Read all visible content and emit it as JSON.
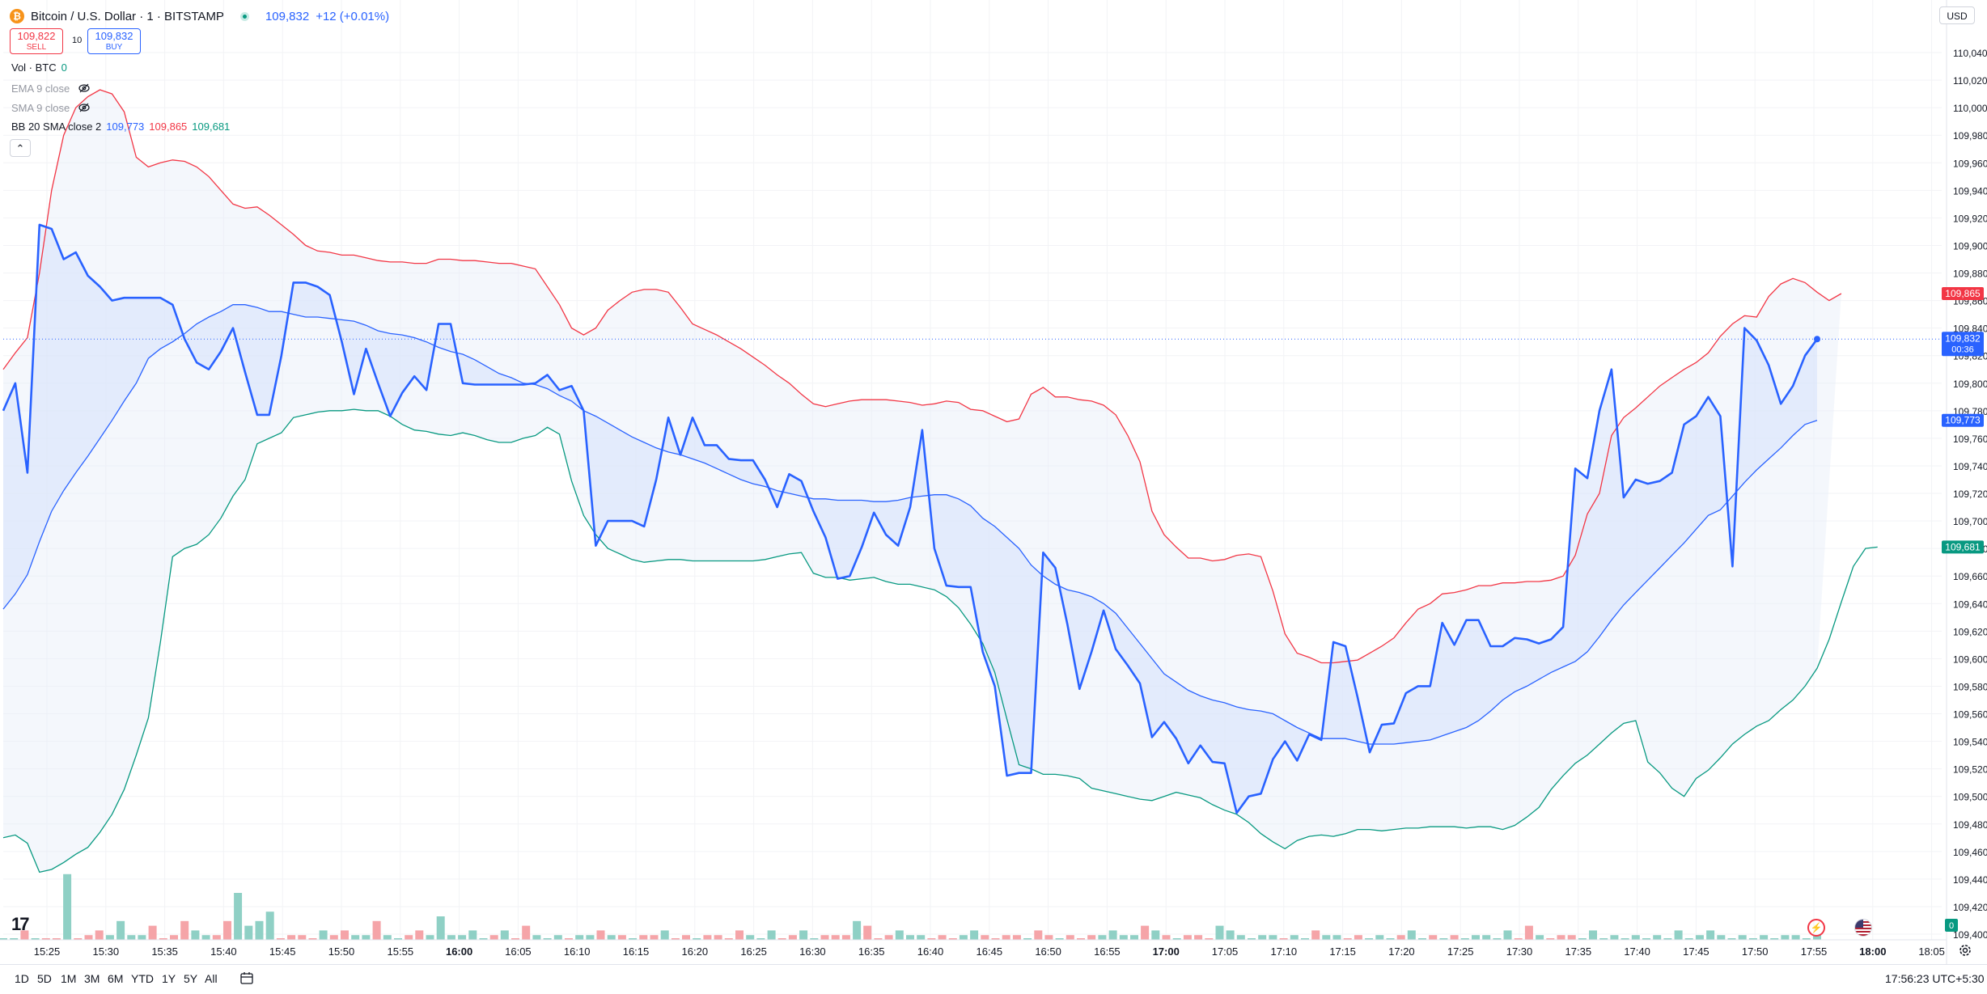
{
  "header": {
    "symbol_title": "Bitcoin / U.S. Dollar · 1 · BITSTAMP",
    "last_price": "109,832",
    "change": "+12 (+0.01%)",
    "logo_glyph": "₿"
  },
  "trade": {
    "sell_price": "109,822",
    "sell_label": "SELL",
    "spread": "10",
    "buy_price": "109,832",
    "buy_label": "BUY"
  },
  "indicators": {
    "vol_label": "Vol · BTC",
    "vol_value": "0",
    "ema_label": "EMA 9 close",
    "sma_label": "SMA 9 close",
    "bb_label": "BB 20 SMA close 2",
    "bb_basis": "109,773",
    "bb_upper": "109,865",
    "bb_lower": "109,681"
  },
  "currency": "USD",
  "price_axis": {
    "labels": [
      "110,040",
      "110,020",
      "110,000",
      "109,980",
      "109,960",
      "109,940",
      "109,920",
      "109,900",
      "109,880",
      "109,860",
      "109,840",
      "109,820",
      "109,800",
      "109,780",
      "109,760",
      "109,740",
      "109,720",
      "109,700",
      "109,680",
      "109,660",
      "109,640",
      "109,620",
      "109,600",
      "109,580",
      "109,560",
      "109,540",
      "109,520",
      "109,500",
      "109,480",
      "109,460",
      "109,440",
      "109,420",
      "109,400"
    ],
    "tags": [
      {
        "value": 109865,
        "text": "109,865",
        "color": "#f23645"
      },
      {
        "value": 109832,
        "text": "109,832",
        "sub": "00:36",
        "color": "#2962ff"
      },
      {
        "value": 109773,
        "text": "109,773",
        "color": "#2962ff"
      },
      {
        "value": 109681,
        "text": "109,681",
        "color": "#089981"
      }
    ],
    "volume_tag": "0"
  },
  "time_axis": {
    "labels": [
      "15:25",
      "15:30",
      "15:35",
      "15:40",
      "15:45",
      "15:50",
      "15:55",
      "16:00",
      "16:05",
      "16:10",
      "16:15",
      "16:20",
      "16:25",
      "16:30",
      "16:35",
      "16:40",
      "16:45",
      "16:50",
      "16:55",
      "17:00",
      "17:05",
      "17:10",
      "17:15",
      "17:20",
      "17:25",
      "17:30",
      "17:35",
      "17:40",
      "17:45",
      "17:50",
      "17:55",
      "18:00",
      "18:05"
    ],
    "bold": [
      "16:00",
      "17:00",
      "18:00"
    ]
  },
  "range_buttons": [
    "1D",
    "5D",
    "1M",
    "3M",
    "6M",
    "YTD",
    "1Y",
    "5Y",
    "All"
  ],
  "clock": "17:56:23 UTC+5:30",
  "branding": "17",
  "colors": {
    "price_line": "#2962ff",
    "bb_upper": "#f23645",
    "bb_lower": "#089981",
    "vol_up": "#8fd0c5",
    "vol_down": "#f5a4a8",
    "band_fill": "#e3ebfb"
  },
  "icons": [
    "bitcoin-logo-icon",
    "live-status-icon",
    "eye-off-icon",
    "chevron-up-icon",
    "calendar-icon",
    "tradingview-logo-icon",
    "lightning-icon",
    "us-flag-icon",
    "settings-gear-icon"
  ],
  "chart_data": {
    "type": "line",
    "title": "Bitcoin / U.S. Dollar · 1 · BITSTAMP",
    "ylim": [
      109400,
      110040
    ],
    "x_ticks": [
      "15:25",
      "15:30",
      "15:35",
      "15:40",
      "15:45",
      "15:50",
      "15:55",
      "16:00",
      "16:05",
      "16:10",
      "16:15",
      "16:20",
      "16:25",
      "16:30",
      "16:35",
      "16:40",
      "16:45",
      "16:50",
      "16:55",
      "17:00",
      "17:05",
      "17:10",
      "17:15",
      "17:20",
      "17:25",
      "17:30",
      "17:35",
      "17:40",
      "17:45",
      "17:50",
      "17:55"
    ],
    "series": [
      {
        "name": "",
        "values": [
          109780,
          109800,
          109735,
          109915,
          109912,
          109890,
          109895,
          109878,
          109870,
          109860,
          109862,
          109862,
          109862,
          109862,
          109857,
          109832,
          109815,
          109810,
          109823,
          109840,
          109808,
          109777,
          109777,
          109820,
          109873,
          109873,
          109870,
          109864,
          109830,
          109792,
          109825,
          109800,
          109776,
          109793,
          109805,
          109795,
          109843,
          109843,
          109800,
          109799,
          109799,
          109799,
          109799,
          109799,
          109800,
          109806,
          109795,
          109798,
          109780,
          109682,
          109700,
          109700,
          109700,
          109696,
          109730,
          109775,
          109748,
          109775,
          109755,
          109755,
          109745,
          109744,
          109744,
          109730,
          109710,
          109734,
          109729,
          109707,
          109688,
          109658,
          109660,
          109681,
          109706,
          109690,
          109682,
          109710,
          109766,
          109680,
          109653,
          109652,
          109652,
          109605,
          109580,
          109515,
          109517,
          109517,
          109677,
          109666,
          109625,
          109578,
          109605,
          109635,
          109607,
          109595,
          109582,
          109543,
          109554,
          109542,
          109524,
          109537,
          109525,
          109524,
          109488,
          109500,
          109502,
          109527,
          109540,
          109526,
          109545,
          109541,
          109612,
          109609,
          109572,
          109532,
          109552,
          109553,
          109575,
          109580,
          109580,
          109626,
          109610,
          109628,
          109628,
          109609,
          109609,
          109615,
          109614,
          109611,
          109614,
          109623,
          109738,
          109731,
          109780,
          109810,
          109717,
          109730,
          109727,
          109729,
          109735,
          109770,
          109776,
          109790,
          109776,
          109667,
          109840,
          109831,
          109813,
          109785,
          109798,
          109820,
          109832
        ]
      },
      {
        "name": "",
        "values": [
          109810,
          109822,
          109833,
          109880,
          109940,
          109980,
          110000,
          110008,
          110013,
          110010,
          109997,
          109964,
          109957,
          109960,
          109962,
          109961,
          109957,
          109950,
          109940,
          109930,
          109927,
          109928,
          109922,
          109915,
          109908,
          109900,
          109896,
          109895,
          109893,
          109893,
          109891,
          109889,
          109888,
          109888,
          109887,
          109887,
          109890,
          109890,
          109889,
          109889,
          109888,
          109887,
          109887,
          109885,
          109883,
          109870,
          109857,
          109840,
          109835,
          109840,
          109853,
          109860,
          109866,
          109868,
          109868,
          109866,
          109855,
          109843,
          109839,
          109835,
          109830,
          109825,
          109819,
          109813,
          109806,
          109800,
          109792,
          109785,
          109783,
          109785,
          109787,
          109788,
          109788,
          109788,
          109787,
          109786,
          109784,
          109785,
          109787,
          109786,
          109781,
          109780,
          109776,
          109772,
          109774,
          109792,
          109797,
          109790,
          109790,
          109788,
          109787,
          109784,
          109777,
          109762,
          109743,
          109707,
          109690,
          109681,
          109673,
          109673,
          109671,
          109672,
          109675,
          109676,
          109674,
          109649,
          109618,
          109604,
          109601,
          109597,
          109597,
          109598,
          109599,
          109604,
          109609,
          109615,
          109626,
          109636,
          109640,
          109647,
          109648,
          109650,
          109653,
          109653,
          109655,
          109655,
          109656,
          109656,
          109657,
          109660,
          109675,
          109705,
          109720,
          109762,
          109775,
          109782,
          109790,
          109798,
          109804,
          109810,
          109815,
          109822,
          109834,
          109843,
          109849,
          109848,
          109863,
          109872,
          109876,
          109873,
          109866,
          109860,
          109865
        ]
      },
      {
        "name": "",
        "values": [
          109470,
          109472,
          109466,
          109445,
          109447,
          109452,
          109458,
          109463,
          109474,
          109487,
          109505,
          109530,
          109557,
          109612,
          109674,
          109680,
          109683,
          109690,
          109702,
          109718,
          109730,
          109756,
          109760,
          109764,
          109775,
          109777,
          109779,
          109780,
          109780,
          109781,
          109780,
          109780,
          109776,
          109770,
          109766,
          109765,
          109763,
          109762,
          109764,
          109762,
          109759,
          109757,
          109757,
          109760,
          109762,
          109768,
          109763,
          109729,
          109704,
          109690,
          109680,
          109676,
          109672,
          109670,
          109671,
          109672,
          109672,
          109671,
          109671,
          109671,
          109671,
          109671,
          109671,
          109672,
          109674,
          109676,
          109677,
          109662,
          109659,
          109659,
          109657,
          109658,
          109659,
          109656,
          109654,
          109654,
          109652,
          109650,
          109645,
          109637,
          109625,
          109611,
          109590,
          109556,
          109523,
          109520,
          109516,
          109516,
          109515,
          109513,
          109506,
          109504,
          109502,
          109500,
          109498,
          109497,
          109500,
          109503,
          109501,
          109499,
          109494,
          109490,
          109487,
          109481,
          109473,
          109467,
          109462,
          109468,
          109471,
          109472,
          109471,
          109473,
          109476,
          109476,
          109475,
          109476,
          109477,
          109477,
          109478,
          109478,
          109478,
          109477,
          109478,
          109478,
          109476,
          109479,
          109485,
          109492,
          109505,
          109515,
          109524,
          109530,
          109538,
          109546,
          109553,
          109555,
          109525,
          109517,
          109506,
          109500,
          109513,
          109519,
          109528,
          109538,
          109545,
          109551,
          109555,
          109563,
          109570,
          109580,
          109593,
          109614,
          109641,
          109667,
          109680,
          109681
        ]
      },
      {
        "name": "",
        "values": [
          109636,
          109647,
          109661,
          109685,
          109707,
          109722,
          109735,
          109747,
          109760,
          109773,
          109787,
          109800,
          109818,
          109825,
          109830,
          109836,
          109843,
          109848,
          109852,
          109857,
          109857,
          109855,
          109852,
          109852,
          109850,
          109848,
          109848,
          109847,
          109846,
          109845,
          109842,
          109838,
          109836,
          109835,
          109833,
          109830,
          109826,
          109823,
          109821,
          109817,
          109812,
          109807,
          109804,
          109800,
          109799,
          109796,
          109791,
          109787,
          109780,
          109776,
          109771,
          109766,
          109761,
          109757,
          109753,
          109750,
          109748,
          109745,
          109742,
          109738,
          109734,
          109730,
          109727,
          109725,
          109722,
          109720,
          109718,
          109716,
          109716,
          109715,
          109715,
          109715,
          109714,
          109714,
          109715,
          109717,
          109718,
          109719,
          109719,
          109716,
          109711,
          109702,
          109696,
          109688,
          109680,
          109668,
          109660,
          109654,
          109650,
          109648,
          109645,
          109640,
          109633,
          109622,
          109611,
          109600,
          109589,
          109583,
          109577,
          109573,
          109570,
          109568,
          109565,
          109563,
          109562,
          109560,
          109555,
          109550,
          109546,
          109542,
          109542,
          109542,
          109540,
          109538,
          109538,
          109538,
          109539,
          109540,
          109541,
          109544,
          109547,
          109550,
          109555,
          109562,
          109570,
          109576,
          109580,
          109585,
          109590,
          109594,
          109598,
          109605,
          109616,
          109628,
          109639,
          109648,
          109657,
          109666,
          109675,
          109684,
          109694,
          109704,
          109708,
          109718,
          109728,
          109737,
          109745,
          109753,
          109762,
          109770,
          109773
        ]
      }
    ],
    "volume_bars": [
      0,
      0,
      2,
      0,
      0,
      0,
      14,
      0,
      1,
      2,
      1,
      4,
      1,
      1,
      3,
      0,
      1,
      4,
      2,
      1,
      1,
      4,
      10,
      3,
      4,
      6,
      0,
      1,
      1,
      0,
      2,
      1,
      2,
      1,
      1,
      4,
      1,
      0,
      1,
      2,
      1,
      5,
      1,
      1,
      2,
      0,
      1,
      2,
      0,
      3,
      1,
      0,
      1,
      0,
      1,
      1,
      2,
      1,
      1,
      0,
      1,
      1,
      2,
      0,
      1,
      0,
      1,
      1,
      0,
      2,
      1,
      0,
      2,
      0,
      1,
      2,
      0,
      1,
      1,
      1,
      4,
      3,
      0,
      1,
      2,
      1,
      1,
      0,
      1,
      0,
      1,
      2,
      1,
      0,
      1,
      1,
      0,
      2,
      1,
      0,
      1,
      0,
      1,
      1,
      2,
      1,
      1,
      3,
      2,
      1,
      0,
      1,
      1,
      0,
      3,
      2,
      1,
      0,
      1,
      1,
      0,
      1,
      0,
      2,
      1,
      1,
      0,
      1,
      0,
      1,
      0,
      1,
      2,
      0,
      1,
      0,
      1,
      0,
      1,
      1,
      0,
      2,
      0,
      3,
      1,
      0,
      1,
      1,
      0,
      2,
      0,
      1,
      0,
      1,
      0,
      1,
      0,
      2,
      0,
      1,
      2,
      1,
      0,
      1,
      0,
      1,
      0,
      1,
      1,
      0,
      1
    ],
    "legend": "top-left",
    "grid": true
  }
}
